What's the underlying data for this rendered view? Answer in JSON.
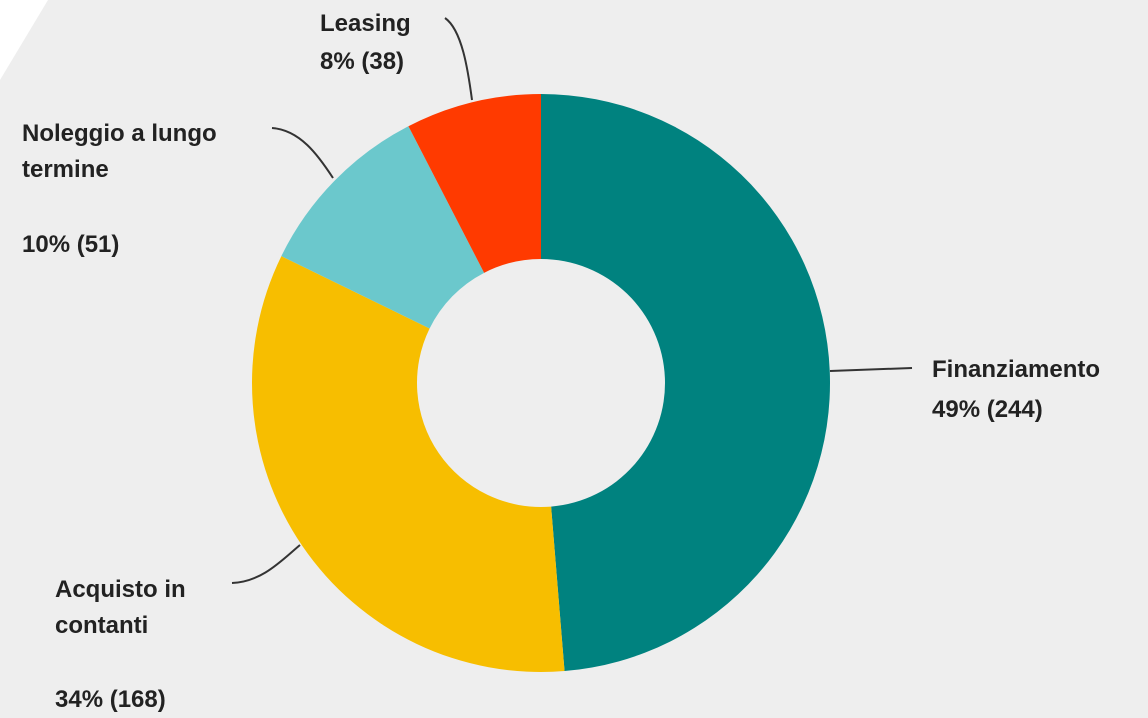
{
  "chart_data": {
    "type": "donut",
    "categories": [
      "Finanziamento",
      "Acquisto in contanti",
      "Noleggio a lungo termine",
      "Leasing"
    ],
    "values": [
      244,
      168,
      51,
      38
    ],
    "value_labels": [
      "49% (244)",
      "34% (168)",
      "10% (51)",
      "8% (38)"
    ],
    "colors": [
      "#00827f",
      "#f7be00",
      "#6bc8cc",
      "#ff3a00"
    ]
  }
}
